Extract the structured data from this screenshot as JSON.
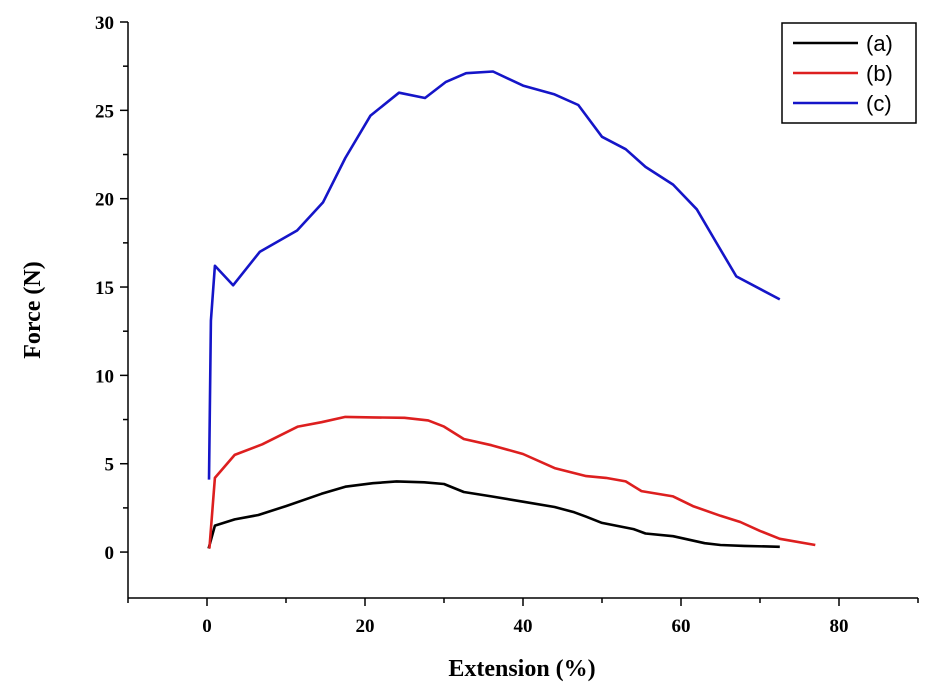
{
  "chart_data": {
    "type": "line",
    "title": "",
    "xlabel": "Extension (%)",
    "ylabel": "Force (N)",
    "xlim": [
      -10,
      90
    ],
    "ylim": [
      -2.6,
      30
    ],
    "xticks": [
      0,
      20,
      40,
      60,
      80
    ],
    "yticks": [
      0,
      5,
      10,
      15,
      20,
      25,
      30
    ],
    "xtick_labels": [
      "0",
      "20",
      "40",
      "60",
      "80"
    ],
    "ytick_labels": [
      "0",
      "5",
      "10",
      "15",
      "20",
      "25",
      "30"
    ],
    "grid": false,
    "legend_position": "top-right",
    "series": [
      {
        "name": "(a)",
        "color": "#000000",
        "x": [
          0.2,
          1,
          3.5,
          6.5,
          10,
          14.5,
          17.5,
          21,
          24,
          27.5,
          30,
          32.5,
          36,
          40,
          44,
          46.5,
          48,
          50,
          54,
          55.5,
          59,
          61,
          63,
          65,
          68,
          72.5
        ],
        "y": [
          0.2,
          1.5,
          1.85,
          2.1,
          2.6,
          3.3,
          3.7,
          3.9,
          4.0,
          3.95,
          3.85,
          3.4,
          3.15,
          2.85,
          2.55,
          2.25,
          2.0,
          1.65,
          1.3,
          1.05,
          0.9,
          0.7,
          0.5,
          0.4,
          0.35,
          0.3
        ]
      },
      {
        "name": "(b)",
        "color": "#dd1f1f",
        "x": [
          0.3,
          1,
          3.5,
          7,
          11.5,
          14.5,
          17.5,
          21,
          25,
          28,
          30,
          32.5,
          36,
          40,
          44,
          48,
          50.5,
          53,
          55,
          59,
          61.5,
          65,
          67.5,
          70,
          72.5,
          77
        ],
        "y": [
          0.2,
          4.2,
          5.5,
          6.1,
          7.1,
          7.35,
          7.65,
          7.62,
          7.6,
          7.45,
          7.1,
          6.4,
          6.05,
          5.55,
          4.75,
          4.3,
          4.2,
          4.0,
          3.45,
          3.15,
          2.6,
          2.05,
          1.7,
          1.2,
          0.75,
          0.4
        ]
      },
      {
        "name": "(c)",
        "color": "#1515c8",
        "x": [
          0.25,
          0.5,
          1,
          3.3,
          6.7,
          11.4,
          14.7,
          17.5,
          20.7,
          24.3,
          27.6,
          30.2,
          32.8,
          36.2,
          40,
          44,
          47,
          50,
          53,
          55.5,
          59,
          62,
          64.5,
          67,
          72.5
        ],
        "y": [
          4.1,
          13.1,
          16.2,
          15.1,
          17.0,
          18.2,
          19.8,
          22.3,
          24.7,
          26.0,
          25.7,
          26.6,
          27.1,
          27.2,
          26.4,
          25.9,
          25.3,
          23.5,
          22.8,
          21.8,
          20.8,
          19.4,
          17.5,
          15.6,
          14.3
        ]
      }
    ]
  }
}
